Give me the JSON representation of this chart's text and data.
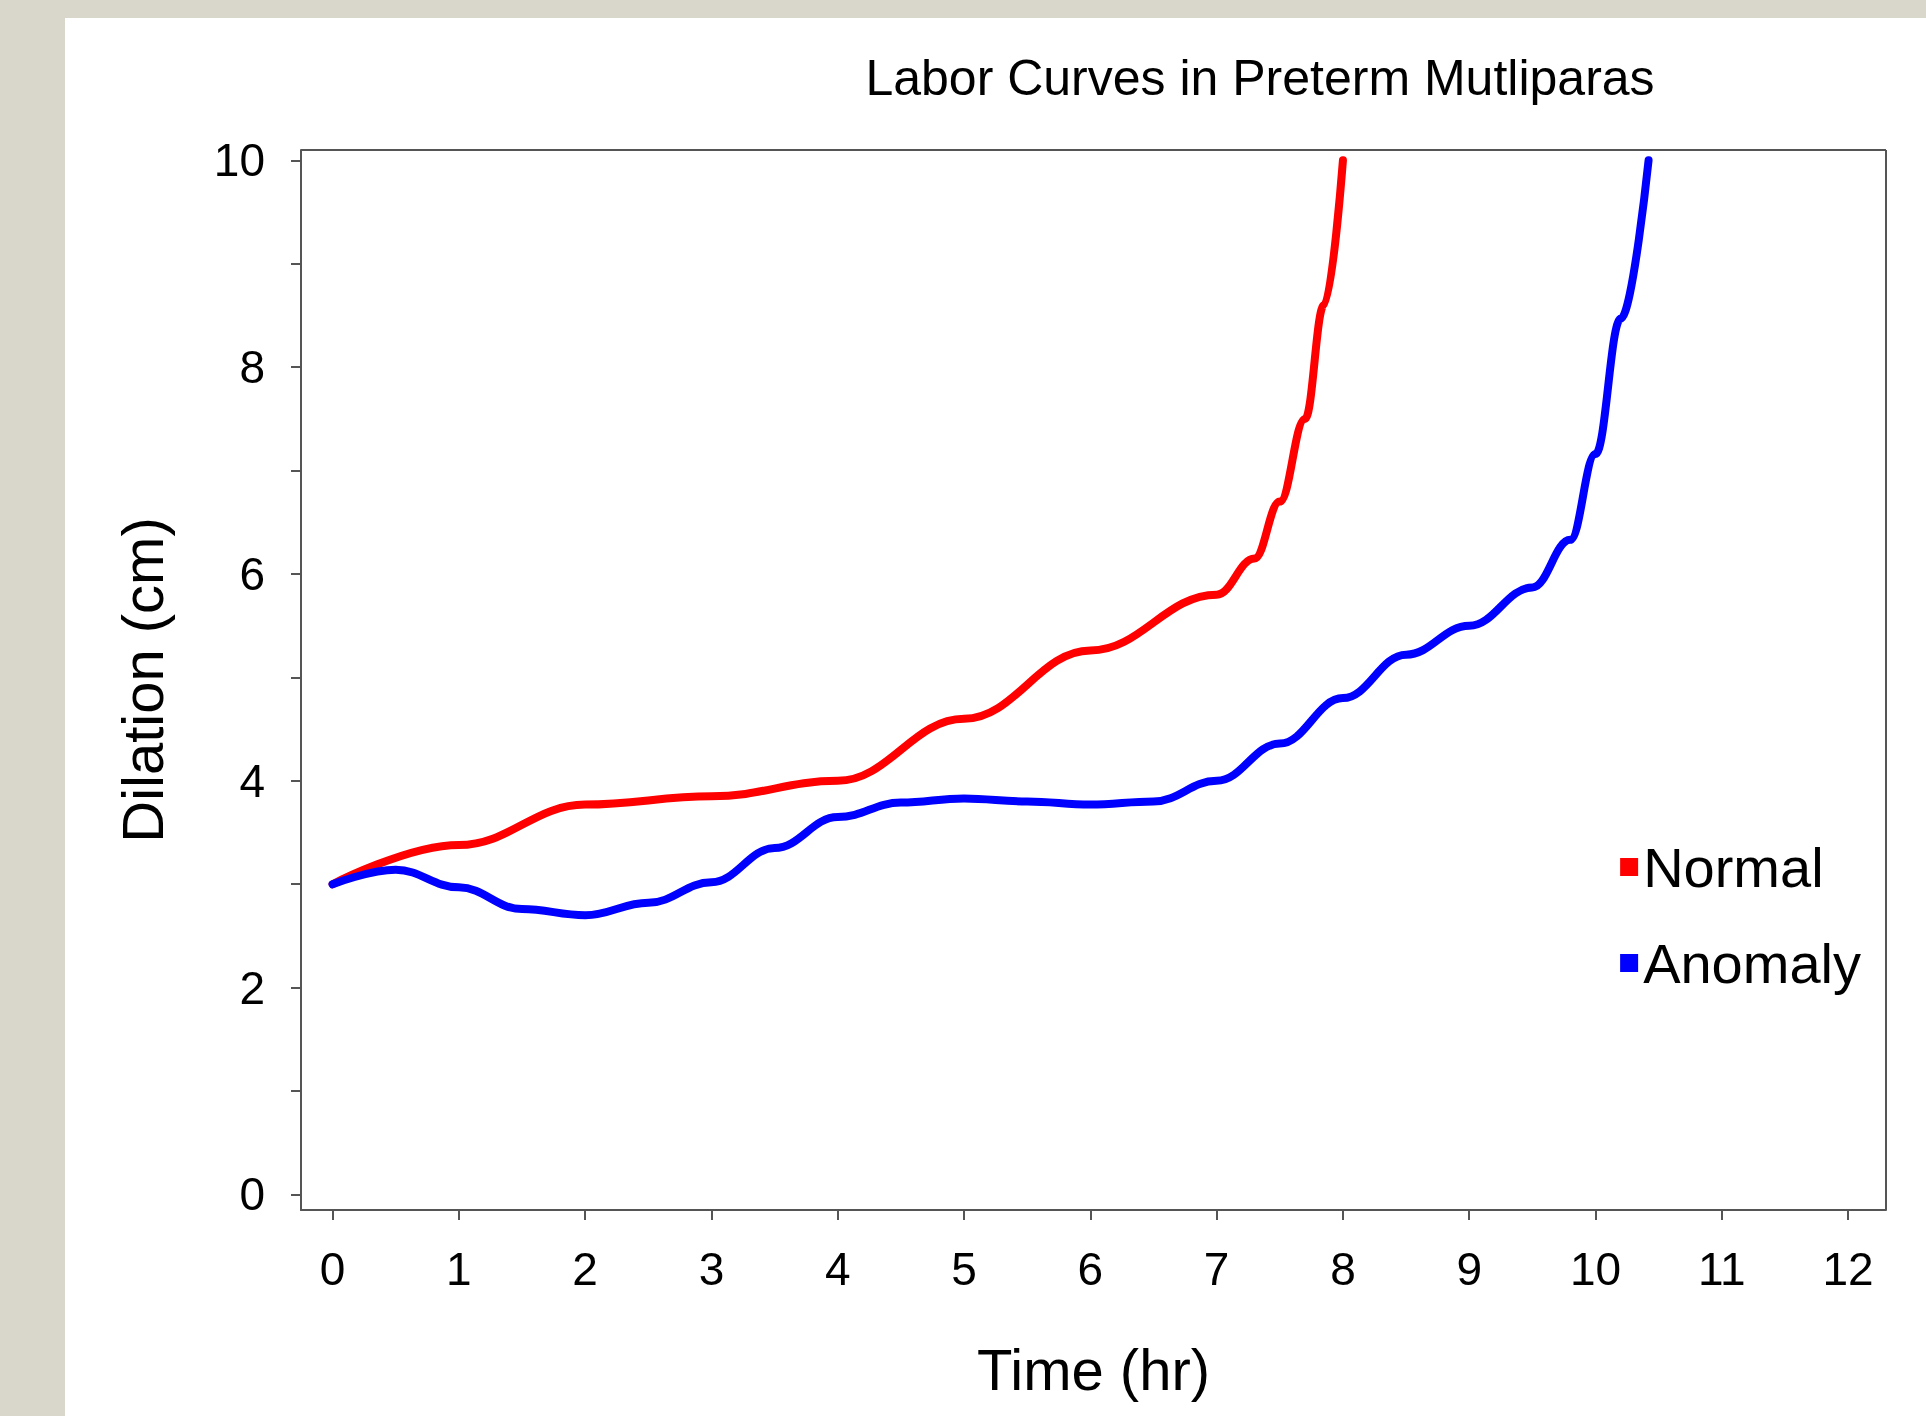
{
  "chart_data": {
    "type": "line",
    "title": "Labor Curves in Preterm Mutliparas",
    "xlabel": "Time (hr)",
    "ylabel": "Dilation (cm)",
    "xlim": [
      -0.25,
      12.3
    ],
    "xticks": [
      0,
      1,
      2,
      3,
      4,
      5,
      6,
      7,
      8,
      9,
      10,
      11,
      12
    ],
    "ylim": [
      -0.15,
      10.1
    ],
    "yticks": [
      0,
      {
        "value": 1,
        "label": null
      },
      2,
      {
        "value": 3,
        "label": null
      },
      4,
      {
        "value": 5,
        "label": null
      },
      6,
      {
        "value": 7,
        "label": null
      },
      8,
      {
        "value": 9,
        "label": null
      },
      10
    ],
    "grid": false,
    "legend": "bottom right",
    "marker": "none",
    "line_style": "solid",
    "series": [
      {
        "name": "Normal",
        "color": "#ff0000",
        "x": [
          0,
          1,
          2,
          3,
          4,
          5,
          6,
          7,
          7.3,
          7.5,
          7.7,
          7.85,
          8
        ],
        "values": [
          3.0,
          3.38,
          3.77,
          3.85,
          4.0,
          4.6,
          5.26,
          5.8,
          6.15,
          6.7,
          7.5,
          8.6,
          10
        ]
      },
      {
        "name": "Anomaly",
        "color": "#0000ff",
        "x": [
          0,
          0.5,
          1,
          1.5,
          2,
          2.5,
          3,
          3.5,
          4,
          4.5,
          5,
          5.5,
          6,
          6.5,
          7,
          7.5,
          8,
          8.5,
          9,
          9.5,
          9.8,
          10,
          10.2,
          10.42
        ],
        "values": [
          3.0,
          3.14,
          2.97,
          2.76,
          2.7,
          2.82,
          3.02,
          3.35,
          3.65,
          3.79,
          3.83,
          3.8,
          3.77,
          3.8,
          4.0,
          4.36,
          4.8,
          5.22,
          5.5,
          5.87,
          6.33,
          7.16,
          8.47,
          10
        ]
      }
    ]
  }
}
